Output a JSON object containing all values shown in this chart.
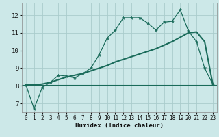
{
  "title": "",
  "xlabel": "Humidex (Indice chaleur)",
  "bg_color": "#cce8e8",
  "grid_color": "#aacccc",
  "line_color": "#1a6b5a",
  "xlim": [
    -0.5,
    23.5
  ],
  "ylim": [
    6.5,
    12.7
  ],
  "xticks": [
    0,
    1,
    2,
    3,
    4,
    5,
    6,
    7,
    8,
    9,
    10,
    11,
    12,
    13,
    14,
    15,
    16,
    17,
    18,
    19,
    20,
    21,
    22,
    23
  ],
  "yticks": [
    7,
    8,
    9,
    10,
    11,
    12
  ],
  "humidex_x": [
    0,
    1,
    2,
    3,
    4,
    5,
    6,
    7,
    8,
    9,
    10,
    11,
    12,
    13,
    14,
    15,
    16,
    17,
    18,
    19,
    20,
    21,
    22,
    23
  ],
  "humidex_y": [
    8.05,
    6.7,
    7.9,
    8.2,
    8.6,
    8.55,
    8.45,
    8.7,
    9.0,
    9.75,
    10.7,
    11.15,
    11.85,
    11.85,
    11.85,
    11.55,
    11.15,
    11.6,
    11.65,
    12.3,
    11.1,
    10.5,
    9.0,
    8.1
  ],
  "trend_y": [
    8.05,
    8.05,
    8.1,
    8.2,
    8.35,
    8.5,
    8.6,
    8.7,
    8.85,
    9.0,
    9.15,
    9.35,
    9.5,
    9.65,
    9.8,
    9.95,
    10.1,
    10.3,
    10.5,
    10.75,
    11.0,
    11.05,
    10.5,
    8.1
  ],
  "hline_y": 8.05
}
